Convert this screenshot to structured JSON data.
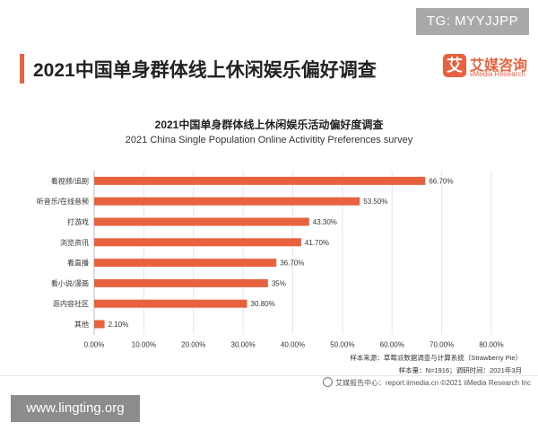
{
  "watermark_top": "TG: MYYJJPP",
  "watermark_bottom": "www.lingting.org",
  "page_title": "2021中国单身群体线上休闲娱乐偏好调查",
  "logo": {
    "mark": "艾",
    "name_cn": "艾媒咨询",
    "name_en": "iiMedia Research",
    "icon": "iimedia-logo-icon"
  },
  "colors": {
    "bar": "#e8623f",
    "accent": "#e8623f"
  },
  "chart_data": {
    "type": "bar",
    "orientation": "horizontal",
    "title": "2021中国单身群体线上休闲娱乐活动偏好度调查",
    "subtitle": "2021 China Single Population Online Activitity Preferences survey",
    "categories": [
      "看视频/追剧",
      "听音乐/在线音频",
      "打游戏",
      "浏览资讯",
      "看直播",
      "看小说/漫画",
      "逛内容社区",
      "其他"
    ],
    "values": [
      66.7,
      53.5,
      43.3,
      41.7,
      36.7,
      35,
      30.8,
      2.1
    ],
    "data_labels": [
      "66.70%",
      "53.50%",
      "43.30%",
      "41.70%",
      "36.70%",
      "35%",
      "30.80%",
      "2.10%"
    ],
    "xlim": [
      0,
      80
    ],
    "xticks": [
      0,
      10,
      20,
      30,
      40,
      50,
      60,
      70,
      80
    ],
    "xtick_labels": [
      "0.00%",
      "10.00%",
      "20.00%",
      "30.00%",
      "40.00%",
      "50.00%",
      "60.00%",
      "70.00%",
      "80.00%"
    ],
    "xlabel": "",
    "ylabel": "",
    "grid": true,
    "legend": false
  },
  "source": {
    "line1": "样本来源：草莓派数据调查与计算系统（Strawberry Pie）",
    "line2": "样本量：N=1916；调研时间：2021年3月"
  },
  "footer": "艾媒报告中心：report.iimedia.cn    ©2021  iiMedia Research  Inc"
}
